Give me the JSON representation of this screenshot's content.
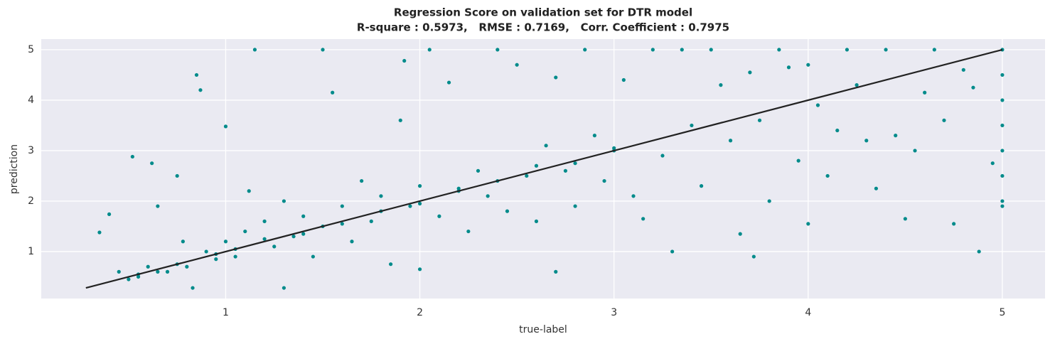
{
  "chart_data": {
    "type": "scatter",
    "title": "Regression Score on validation set for DTR model",
    "subtitle": "R-square : 0.5973,   RMSE : 0.7169,   Corr. Coefficient : 0.7975",
    "xlabel": "true-label",
    "ylabel": "prediction",
    "xlim": [
      0.05,
      5.22
    ],
    "ylim": [
      0.07,
      5.21
    ],
    "xticks": [
      1,
      2,
      3,
      4,
      5
    ],
    "yticks": [
      1,
      2,
      3,
      4,
      5
    ],
    "grid": true,
    "points": {
      "color": "#008b8b",
      "x": [
        0.35,
        0.4,
        0.45,
        0.5,
        0.52,
        0.55,
        0.6,
        0.62,
        0.65,
        0.7,
        0.75,
        0.78,
        0.8,
        0.83,
        0.85,
        0.87,
        0.9,
        0.95,
        1.0,
        1.0,
        1.05,
        1.1,
        1.12,
        1.15,
        1.2,
        1.25,
        1.3,
        1.3,
        1.35,
        1.4,
        1.45,
        1.5,
        1.5,
        1.55,
        1.6,
        1.65,
        1.7,
        1.75,
        1.8,
        1.85,
        1.9,
        1.92,
        1.95,
        2.0,
        2.0,
        2.05,
        2.1,
        2.15,
        2.2,
        2.25,
        2.3,
        2.35,
        2.4,
        2.45,
        2.5,
        2.55,
        2.6,
        2.65,
        2.7,
        2.7,
        2.75,
        2.8,
        2.85,
        2.9,
        2.95,
        3.0,
        3.05,
        3.1,
        3.15,
        3.2,
        3.25,
        3.3,
        3.35,
        3.4,
        3.45,
        3.5,
        3.55,
        3.6,
        3.65,
        3.7,
        3.72,
        3.75,
        3.8,
        3.85,
        3.9,
        3.95,
        4.0,
        4.0,
        4.05,
        4.1,
        4.15,
        4.2,
        4.25,
        4.3,
        4.35,
        4.4,
        4.45,
        4.5,
        4.55,
        4.6,
        4.65,
        4.7,
        4.75,
        4.8,
        4.85,
        4.88,
        4.95,
        5.0,
        5.0,
        5.0,
        5.0,
        5.0,
        5.0,
        5.0,
        5.0,
        0.55,
        0.65,
        0.75,
        0.95,
        1.05,
        1.2,
        1.4,
        1.6,
        1.8,
        2.0,
        2.2,
        2.4,
        2.6,
        2.8,
        3.0
      ],
      "y": [
        1.38,
        1.74,
        0.6,
        0.45,
        2.88,
        0.55,
        0.7,
        2.75,
        1.9,
        0.6,
        2.5,
        1.2,
        0.7,
        0.28,
        4.5,
        4.2,
        1.0,
        0.85,
        3.48,
        1.2,
        0.9,
        1.4,
        2.2,
        5.0,
        1.6,
        1.1,
        0.28,
        2.0,
        1.3,
        1.7,
        0.9,
        5.0,
        1.5,
        4.15,
        1.9,
        1.2,
        2.4,
        1.6,
        2.1,
        0.75,
        3.6,
        4.78,
        1.9,
        2.3,
        0.65,
        5.0,
        1.7,
        4.35,
        2.2,
        1.4,
        2.6,
        2.1,
        5.0,
        1.8,
        4.7,
        2.5,
        1.6,
        3.1,
        0.6,
        4.45,
        2.6,
        1.9,
        5.0,
        3.3,
        2.4,
        3.0,
        4.4,
        2.1,
        1.65,
        5.0,
        2.9,
        1.0,
        5.0,
        3.5,
        2.3,
        5.0,
        4.3,
        3.2,
        1.35,
        4.55,
        0.9,
        3.6,
        2.0,
        5.0,
        4.65,
        2.8,
        1.55,
        4.7,
        3.9,
        2.5,
        3.4,
        5.0,
        4.3,
        3.2,
        2.25,
        5.0,
        3.3,
        1.65,
        3.0,
        4.15,
        5.0,
        3.6,
        1.55,
        4.6,
        4.25,
        1.0,
        2.75,
        5.0,
        4.5,
        4.0,
        3.5,
        3.0,
        2.5,
        2.0,
        1.9,
        0.5,
        0.6,
        0.75,
        0.95,
        1.05,
        1.25,
        1.35,
        1.55,
        1.8,
        1.95,
        2.25,
        2.4,
        2.7,
        2.75,
        3.05
      ]
    },
    "line": {
      "color": "#222222",
      "x": [
        0.28,
        5.0
      ],
      "y": [
        0.28,
        5.0
      ]
    }
  }
}
